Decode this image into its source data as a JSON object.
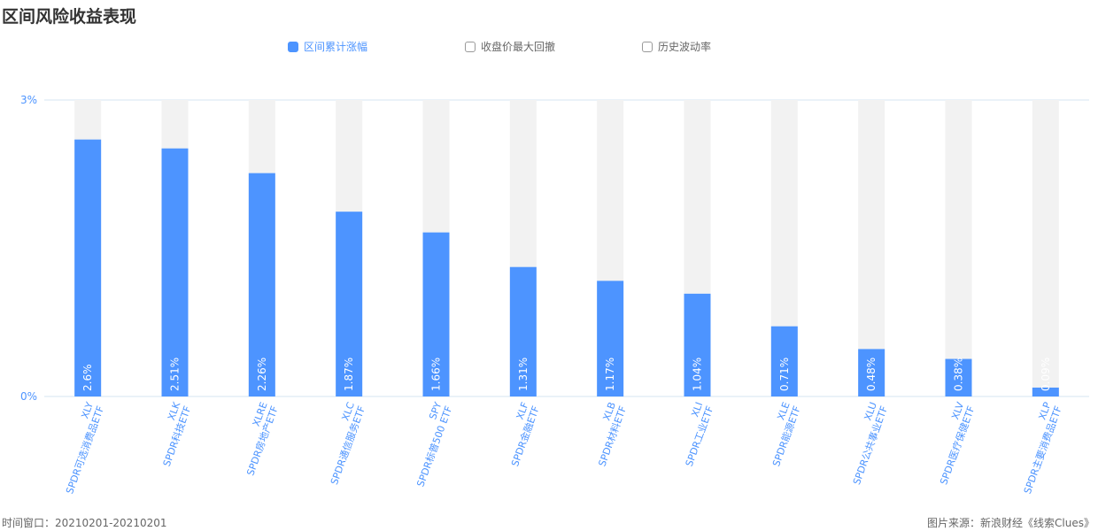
{
  "title": "区间风险收益表现",
  "legend": [
    {
      "label": "区间累计涨幅",
      "active": true
    },
    {
      "label": "收盘价最大回撤",
      "active": false
    },
    {
      "label": "历史波动率",
      "active": false
    }
  ],
  "footer": {
    "left": "时间窗口：20210201-20210201",
    "right": "图片来源：新浪财经《线索Clues》"
  },
  "colors": {
    "bar": "#4d94ff",
    "track": "#f2f2f2",
    "axis": "#d6e4f0",
    "label": "#4d94ff"
  },
  "chart_data": {
    "type": "bar",
    "categories": [
      {
        "code": "XLY",
        "name": "SPDR可选消费品ETF"
      },
      {
        "code": "XLK",
        "name": "SPDR科技ETF"
      },
      {
        "code": "XLRE",
        "name": "SPDR房地产ETF"
      },
      {
        "code": "XLC",
        "name": "SPDR通信服务ETF"
      },
      {
        "code": "SPY",
        "name": "SPDR标普500 ETF"
      },
      {
        "code": "XLF",
        "name": "SPDR金融ETF"
      },
      {
        "code": "XLB",
        "name": "SPDR材料ETF"
      },
      {
        "code": "XLI",
        "name": "SPDR工业ETF"
      },
      {
        "code": "XLE",
        "name": "SPDR能源ETF"
      },
      {
        "code": "XLU",
        "name": "SPDR公共事业ETF"
      },
      {
        "code": "XLV",
        "name": "SPDR医疗保健ETF"
      },
      {
        "code": "XLP",
        "name": "SPDR主要消费品ETF"
      }
    ],
    "series": [
      {
        "name": "区间累计涨幅",
        "values": [
          2.6,
          2.51,
          2.26,
          1.87,
          1.66,
          1.31,
          1.17,
          1.04,
          0.71,
          0.48,
          0.38,
          0.09
        ]
      }
    ],
    "data_labels": [
      "2.6%",
      "2.51%",
      "2.26%",
      "1.87%",
      "1.66%",
      "1.31%",
      "1.17%",
      "1.04%",
      "0.71%",
      "0.48%",
      "0.38%",
      "0.09%"
    ],
    "yticks": [
      {
        "value": 0,
        "label": "0%"
      },
      {
        "value": 3,
        "label": "3%"
      }
    ],
    "ylim": [
      0,
      3
    ]
  }
}
